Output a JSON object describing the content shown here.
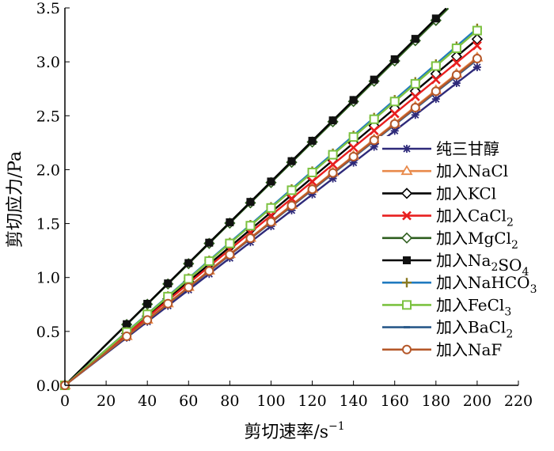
{
  "chart_data": {
    "type": "line",
    "xlabel": "剪切速率/s",
    "xlabel_sup": "−1",
    "ylabel": "剪切应力/Pa",
    "xlim": [
      0,
      220
    ],
    "ylim": [
      0,
      3.5
    ],
    "xticks": [
      0,
      20,
      40,
      60,
      80,
      100,
      120,
      140,
      160,
      180,
      200,
      220
    ],
    "yticks": [
      0.0,
      0.5,
      1.0,
      1.5,
      2.0,
      2.5,
      3.0,
      3.5
    ],
    "x": [
      0,
      30,
      40,
      50,
      60,
      70,
      80,
      90,
      100,
      110,
      120,
      130,
      140,
      150,
      160,
      170,
      180,
      190,
      200
    ],
    "legend_position": "right",
    "series": [
      {
        "name": "纯三甘醇",
        "parts": [
          [
            "纯三甘醇",
            ""
          ]
        ],
        "color": "#2e2a7a",
        "marker": "star",
        "slope": 0.01475,
        "end_x": 200
      },
      {
        "name": "加入NaCl",
        "parts": [
          [
            "加入NaCl",
            ""
          ]
        ],
        "color": "#e8894a",
        "marker": "triangle",
        "slope": 0.0152,
        "end_x": 200
      },
      {
        "name": "加入KCl",
        "parts": [
          [
            "加入KCl",
            ""
          ]
        ],
        "color": "#000000",
        "marker": "diamond-open",
        "slope": 0.01605,
        "end_x": 200
      },
      {
        "name": "加入CaCl2",
        "parts": [
          [
            "加入CaCl",
            ""
          ],
          [
            "2",
            "sub"
          ]
        ],
        "color": "#e81f1f",
        "marker": "x",
        "slope": 0.01575,
        "end_x": 200
      },
      {
        "name": "加入MgCl2",
        "parts": [
          [
            "加入MgCl",
            ""
          ],
          [
            "2",
            "sub"
          ]
        ],
        "color": "#2e5e1e",
        "marker": "diamond-open",
        "slope": 0.0188,
        "end_x": 186
      },
      {
        "name": "加入Na2SO4",
        "parts": [
          [
            "加入Na",
            ""
          ],
          [
            "2",
            "sub"
          ],
          [
            "SO",
            ""
          ],
          [
            "4",
            "sub"
          ]
        ],
        "color": "#000000",
        "marker": "square",
        "slope": 0.0189,
        "end_x": 185
      },
      {
        "name": "加入NaHCO3",
        "parts": [
          [
            "加入NaHCO",
            ""
          ],
          [
            "3",
            "sub"
          ]
        ],
        "color": "#1f7abf",
        "marker": "plus",
        "slope": 0.01655,
        "end_x": 200
      },
      {
        "name": "加入FeCl3",
        "parts": [
          [
            "加入FeCl",
            ""
          ],
          [
            "3",
            "sub"
          ]
        ],
        "color": "#7cc241",
        "marker": "square-open",
        "slope": 0.01645,
        "end_x": 200
      },
      {
        "name": "加入BaCl2",
        "parts": [
          [
            "加入BaCl",
            ""
          ],
          [
            "2",
            "sub"
          ]
        ],
        "color": "#2a5a8a",
        "marker": "dash",
        "slope": 0.0151,
        "end_x": 200
      },
      {
        "name": "加入NaF",
        "parts": [
          [
            "加入NaF",
            ""
          ]
        ],
        "color": "#b5582a",
        "marker": "circle-open",
        "slope": 0.01515,
        "end_x": 200
      }
    ]
  }
}
